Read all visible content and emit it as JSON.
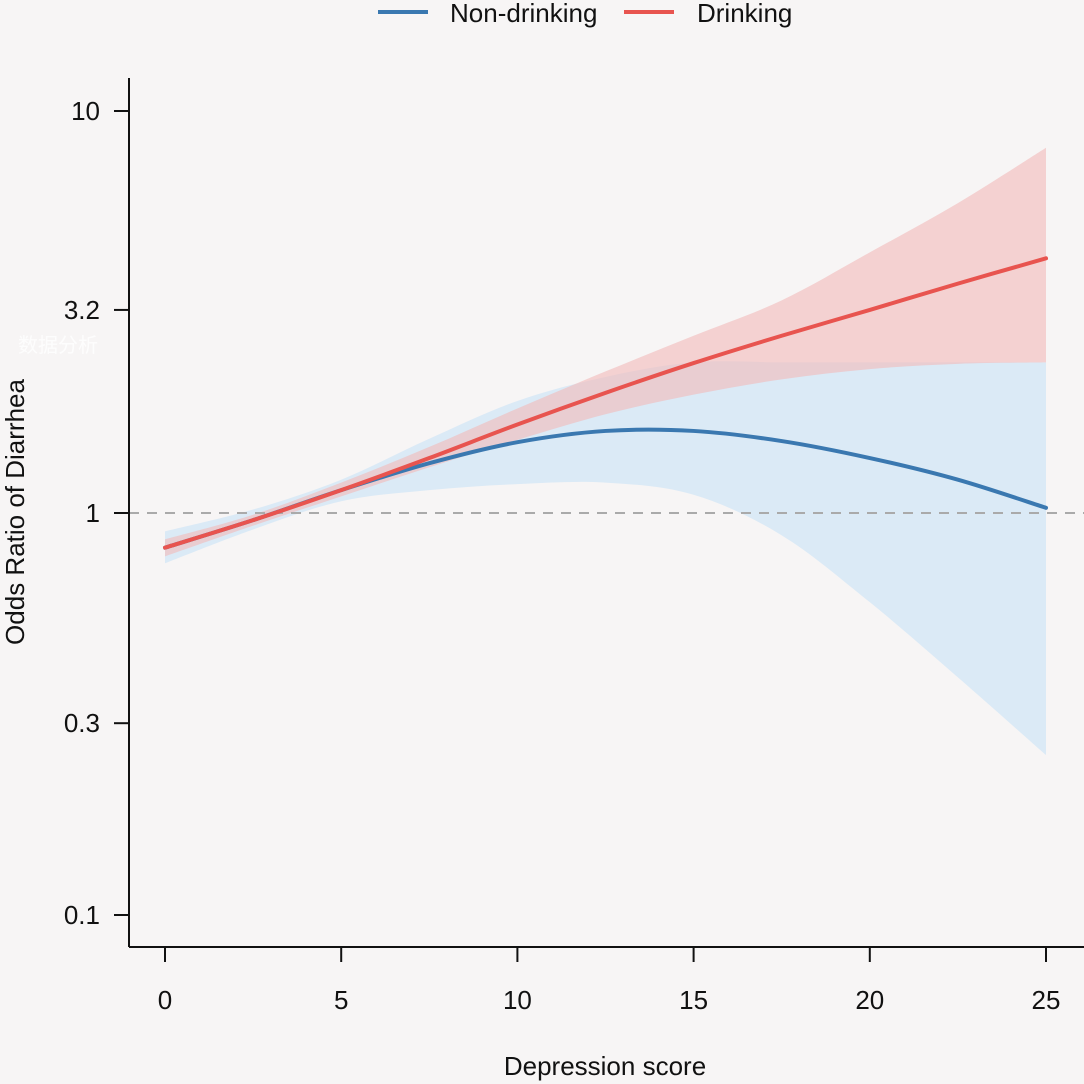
{
  "chart_data": {
    "type": "line",
    "xlabel": "Depression score",
    "ylabel": "Odds Ratio of Diarrhea",
    "xlim": [
      -1,
      26
    ],
    "ylim": [
      0.085,
      12.5
    ],
    "yscale": "log",
    "xticks": [
      0,
      5,
      10,
      15,
      20,
      25
    ],
    "yticks": [
      {
        "value": 0.1,
        "label": "0.1"
      },
      {
        "value": 0.3,
        "label": "0.3"
      },
      {
        "value": 1,
        "label": "1"
      },
      {
        "value": 3.2,
        "label": "3.2"
      },
      {
        "value": 10,
        "label": "10"
      }
    ],
    "reference_line": {
      "y": 1,
      "style": "dashed"
    },
    "legend_position": "top-center",
    "x": [
      0,
      2.5,
      5,
      7.5,
      10,
      12.5,
      15,
      17.5,
      20,
      22.5,
      25
    ],
    "series": [
      {
        "name": "Non-drinking",
        "color": "#3a78b0",
        "band_color": "#d2e6f5",
        "values": [
          0.82,
          0.96,
          1.14,
          1.33,
          1.5,
          1.6,
          1.6,
          1.51,
          1.37,
          1.21,
          1.03
        ],
        "lower": [
          0.75,
          0.91,
          1.07,
          1.14,
          1.18,
          1.19,
          1.11,
          0.88,
          0.6,
          0.39,
          0.25
        ],
        "upper": [
          0.9,
          1.02,
          1.21,
          1.53,
          1.9,
          2.18,
          2.37,
          2.37,
          2.37,
          2.37,
          2.37
        ]
      },
      {
        "name": "Drinking",
        "color": "#e8544f",
        "band_color": "#f2b9b9",
        "values": [
          0.82,
          0.96,
          1.14,
          1.37,
          1.66,
          1.99,
          2.36,
          2.76,
          3.2,
          3.72,
          4.3
        ],
        "lower": [
          0.78,
          0.93,
          1.1,
          1.3,
          1.52,
          1.76,
          1.97,
          2.15,
          2.28,
          2.35,
          2.37
        ],
        "upper": [
          0.86,
          0.99,
          1.19,
          1.46,
          1.82,
          2.25,
          2.76,
          3.38,
          4.45,
          5.9,
          8.1
        ]
      }
    ]
  },
  "watermark": {
    "text": "数据分析"
  }
}
